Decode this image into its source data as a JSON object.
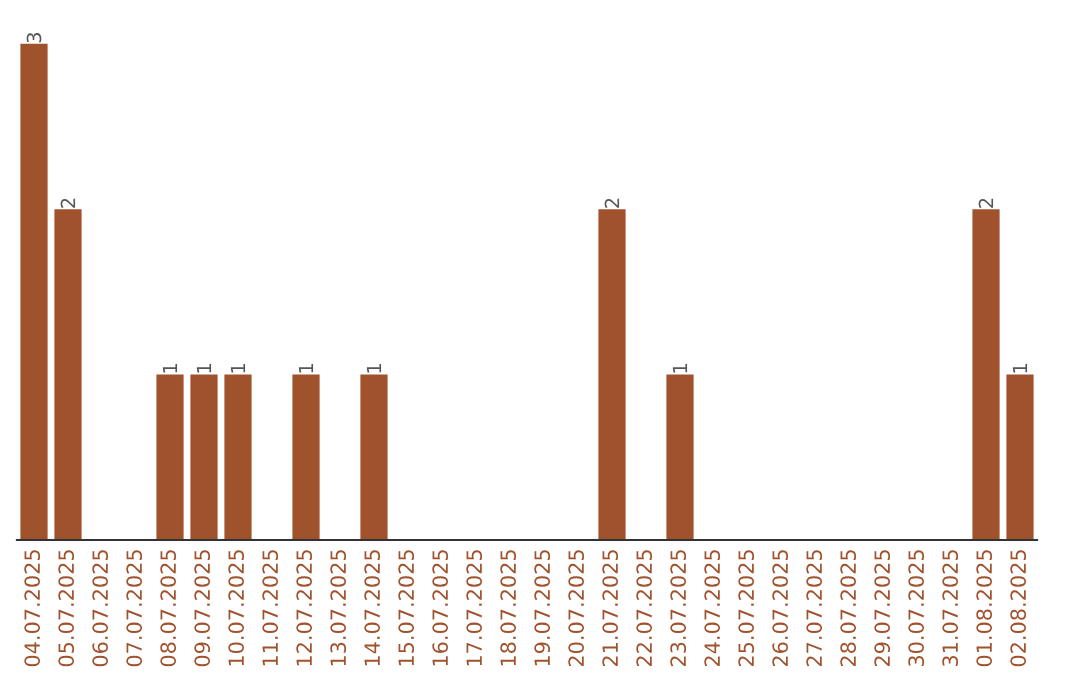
{
  "chart_data": {
    "type": "bar",
    "categories": [
      "04.07.2025",
      "05.07.2025",
      "06.07.2025",
      "07.07.2025",
      "08.07.2025",
      "09.07.2025",
      "10.07.2025",
      "11.07.2025",
      "12.07.2025",
      "13.07.2025",
      "14.07.2025",
      "15.07.2025",
      "16.07.2025",
      "17.07.2025",
      "18.07.2025",
      "19.07.2025",
      "20.07.2025",
      "21.07.2025",
      "22.07.2025",
      "23.07.2025",
      "24.07.2025",
      "25.07.2025",
      "26.07.2025",
      "27.07.2025",
      "28.07.2025",
      "29.07.2025",
      "30.07.2025",
      "31.07.2025",
      "01.08.2025",
      "02.08.2025"
    ],
    "values": [
      3,
      2,
      0,
      0,
      1,
      1,
      1,
      0,
      1,
      0,
      1,
      0,
      0,
      0,
      0,
      0,
      0,
      2,
      0,
      1,
      0,
      0,
      0,
      0,
      0,
      0,
      0,
      0,
      2,
      1
    ],
    "value_labels": [
      "3",
      "2",
      null,
      null,
      "1",
      "1",
      "1",
      null,
      "1",
      null,
      "1",
      null,
      null,
      null,
      null,
      null,
      null,
      "2",
      null,
      "1",
      null,
      null,
      null,
      null,
      null,
      null,
      null,
      null,
      "2",
      "1"
    ],
    "color": "#a0522d",
    "grid": false,
    "legend": false
  }
}
